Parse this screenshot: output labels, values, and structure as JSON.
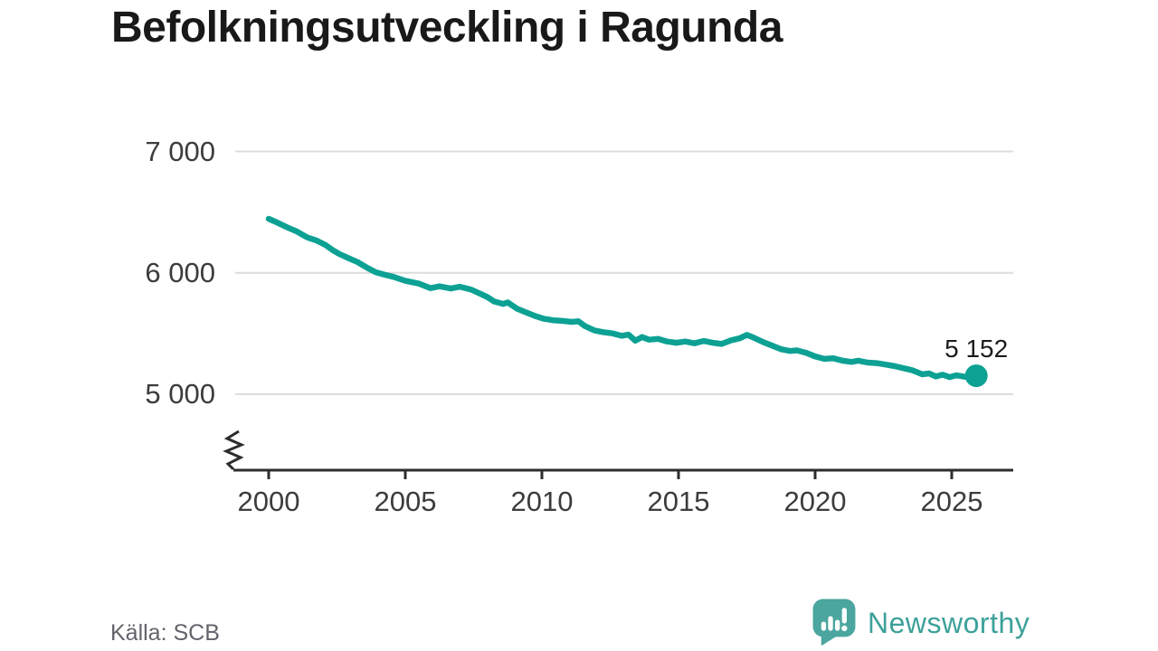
{
  "title": "Befolkningsutveckling i Ragunda",
  "source": "Källa: SCB",
  "branding": {
    "wordmark": "Newsworthy",
    "logo_icon": "speech-bubble-bar-chart-exclamation"
  },
  "colors": {
    "line": "#0da194",
    "end_dot": "#0da194",
    "grid": "#dcdcdc",
    "axis": "#2d2d2d",
    "title_text": "#191919",
    "tick_text": "#3c3c3c",
    "end_label_text": "#1c1c1c",
    "source_text": "#64636c",
    "logo": "#4aa69e",
    "wordmark_text": "#3ca19a"
  },
  "chart_data": {
    "type": "line",
    "title": "Befolkningsutveckling i Ragunda",
    "xlabel": "",
    "ylabel": "",
    "grid": "horizontal",
    "y_axis_break": true,
    "x_ticks": [
      2000,
      2005,
      2010,
      2015,
      2020,
      2025
    ],
    "x_tick_labels": [
      "2000",
      "2005",
      "2010",
      "2015",
      "2020",
      "2025"
    ],
    "y_ticks": [
      7000,
      6000,
      5000
    ],
    "y_tick_labels": [
      "7 000",
      "6 000",
      "5 000"
    ],
    "x_range": [
      2000,
      2025.9
    ],
    "y_range_shown": [
      5000,
      7000
    ],
    "end_label": "5 152",
    "end_value": 5152,
    "series": [
      {
        "name": "Befolkning i Ragunda",
        "points": [
          [
            2000.0,
            6445
          ],
          [
            2000.33,
            6412
          ],
          [
            2000.67,
            6376
          ],
          [
            2001.0,
            6344
          ],
          [
            2001.42,
            6291
          ],
          [
            2001.75,
            6266
          ],
          [
            2002.08,
            6229
          ],
          [
            2002.33,
            6189
          ],
          [
            2002.58,
            6156
          ],
          [
            2002.92,
            6121
          ],
          [
            2003.25,
            6089
          ],
          [
            2003.58,
            6045
          ],
          [
            2003.92,
            6005
          ],
          [
            2004.25,
            5984
          ],
          [
            2004.58,
            5966
          ],
          [
            2005.0,
            5934
          ],
          [
            2005.5,
            5911
          ],
          [
            2005.92,
            5874
          ],
          [
            2006.25,
            5889
          ],
          [
            2006.67,
            5871
          ],
          [
            2007.0,
            5886
          ],
          [
            2007.42,
            5861
          ],
          [
            2007.67,
            5836
          ],
          [
            2008.0,
            5801
          ],
          [
            2008.25,
            5764
          ],
          [
            2008.58,
            5744
          ],
          [
            2008.75,
            5756
          ],
          [
            2009.08,
            5706
          ],
          [
            2009.42,
            5674
          ],
          [
            2009.75,
            5644
          ],
          [
            2010.08,
            5621
          ],
          [
            2010.42,
            5609
          ],
          [
            2010.75,
            5604
          ],
          [
            2011.08,
            5596
          ],
          [
            2011.33,
            5601
          ],
          [
            2011.58,
            5561
          ],
          [
            2011.92,
            5526
          ],
          [
            2012.25,
            5511
          ],
          [
            2012.58,
            5501
          ],
          [
            2012.92,
            5481
          ],
          [
            2013.17,
            5491
          ],
          [
            2013.42,
            5441
          ],
          [
            2013.67,
            5471
          ],
          [
            2013.92,
            5449
          ],
          [
            2014.25,
            5456
          ],
          [
            2014.58,
            5434
          ],
          [
            2014.92,
            5424
          ],
          [
            2015.25,
            5434
          ],
          [
            2015.58,
            5419
          ],
          [
            2015.92,
            5439
          ],
          [
            2016.25,
            5424
          ],
          [
            2016.58,
            5414
          ],
          [
            2016.92,
            5444
          ],
          [
            2017.25,
            5461
          ],
          [
            2017.5,
            5489
          ],
          [
            2017.75,
            5466
          ],
          [
            2018.08,
            5431
          ],
          [
            2018.42,
            5401
          ],
          [
            2018.75,
            5371
          ],
          [
            2019.08,
            5356
          ],
          [
            2019.33,
            5361
          ],
          [
            2019.67,
            5341
          ],
          [
            2020.0,
            5311
          ],
          [
            2020.33,
            5291
          ],
          [
            2020.67,
            5296
          ],
          [
            2021.0,
            5276
          ],
          [
            2021.33,
            5266
          ],
          [
            2021.58,
            5276
          ],
          [
            2021.92,
            5261
          ],
          [
            2022.25,
            5256
          ],
          [
            2022.58,
            5244
          ],
          [
            2022.92,
            5231
          ],
          [
            2023.25,
            5214
          ],
          [
            2023.58,
            5196
          ],
          [
            2023.92,
            5164
          ],
          [
            2024.17,
            5171
          ],
          [
            2024.42,
            5146
          ],
          [
            2024.67,
            5161
          ],
          [
            2024.92,
            5141
          ],
          [
            2025.17,
            5156
          ],
          [
            2025.5,
            5143
          ],
          [
            2025.9,
            5152
          ]
        ]
      }
    ]
  }
}
